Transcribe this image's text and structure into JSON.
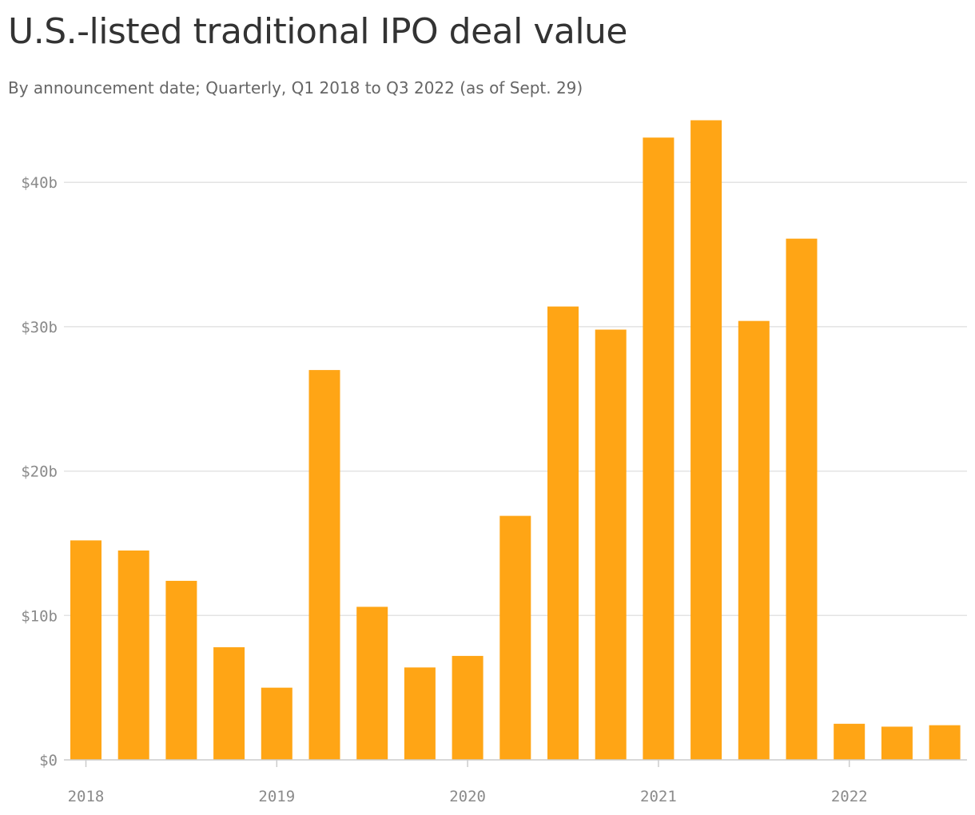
{
  "chart_data": {
    "type": "bar",
    "title": "U.S.-listed traditional IPO deal value",
    "subtitle": "By announcement date; Quarterly, Q1 2018 to Q3 2022 (as of Sept. 29)",
    "xlabel": "",
    "ylabel": "",
    "categories": [
      "Q1 2018",
      "Q2 2018",
      "Q3 2018",
      "Q4 2018",
      "Q1 2019",
      "Q2 2019",
      "Q3 2019",
      "Q4 2019",
      "Q1 2020",
      "Q2 2020",
      "Q3 2020",
      "Q4 2020",
      "Q1 2021",
      "Q2 2021",
      "Q3 2021",
      "Q4 2021",
      "Q1 2022",
      "Q2 2022",
      "Q3 2022"
    ],
    "values": [
      15.2,
      14.5,
      12.4,
      7.8,
      5.0,
      27.0,
      10.6,
      6.4,
      7.2,
      16.9,
      31.4,
      29.8,
      43.1,
      44.3,
      30.4,
      36.1,
      2.5,
      2.3,
      2.4
    ],
    "unit": "billions USD",
    "ylim": [
      0,
      44.3
    ],
    "yticks": [
      0,
      10,
      20,
      30,
      40
    ],
    "ytick_labels": [
      "$0",
      "$10b",
      "$20b",
      "$30b",
      "$40b"
    ],
    "xtick_labels": [
      "2018",
      "2019",
      "2020",
      "2021",
      "2022"
    ],
    "xtick_positions": [
      0,
      4,
      8,
      12,
      16
    ],
    "grid": "horizontal",
    "legend": "none",
    "bar_color": "#ffa515",
    "grid_color": "#e3e3e3",
    "axis_color": "#cccccc"
  }
}
